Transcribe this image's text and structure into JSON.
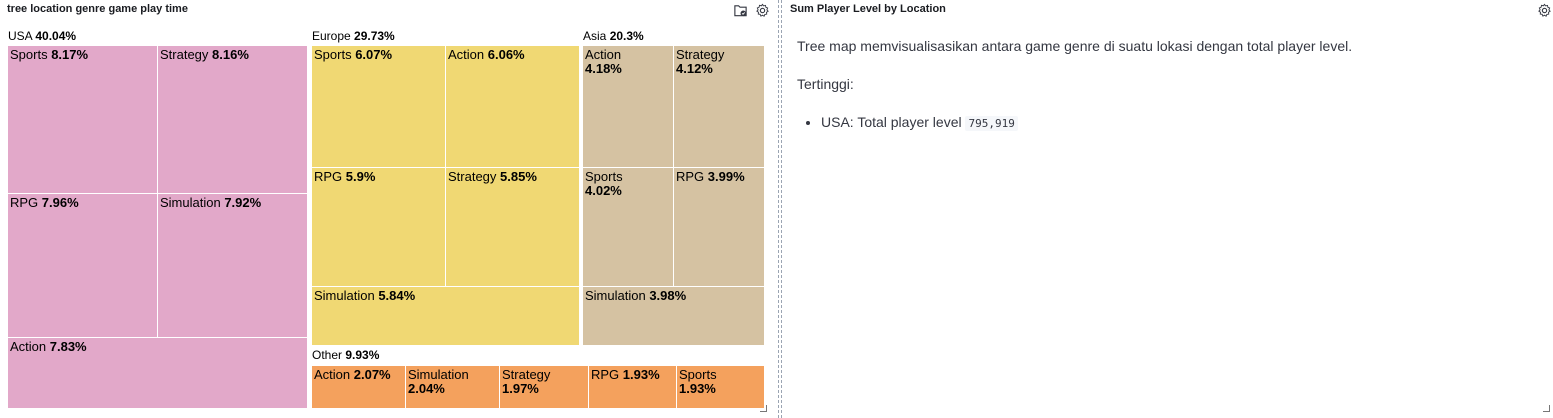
{
  "left_panel": {
    "title": "tree location genre game play time"
  },
  "right_panel": {
    "title": "Sum Player Level by Location",
    "paragraph1": "Tree map memvisualisasikan antara game genre di suatu lokasi dengan total player level.",
    "paragraph2": "Tertinggi:",
    "list_item_text": "USA: Total player level",
    "list_item_value": "795,919"
  },
  "icons": {
    "inspect": "inspect-icon",
    "settings": "gear-icon"
  },
  "chart_data": {
    "type": "treemap",
    "title": "tree location genre game play time",
    "groups": [
      {
        "name": "USA",
        "percent": "40.04%",
        "color": "#e2a8c9",
        "children": [
          {
            "name": "Sports",
            "percent": "8.17%"
          },
          {
            "name": "Strategy",
            "percent": "8.16%"
          },
          {
            "name": "RPG",
            "percent": "7.96%"
          },
          {
            "name": "Simulation",
            "percent": "7.92%"
          },
          {
            "name": "Action",
            "percent": "7.83%"
          }
        ]
      },
      {
        "name": "Europe",
        "percent": "29.73%",
        "color": "#f0d873",
        "children": [
          {
            "name": "Sports",
            "percent": "6.07%"
          },
          {
            "name": "Action",
            "percent": "6.06%"
          },
          {
            "name": "RPG",
            "percent": "5.9%"
          },
          {
            "name": "Strategy",
            "percent": "5.85%"
          },
          {
            "name": "Simulation",
            "percent": "5.84%"
          }
        ]
      },
      {
        "name": "Asia",
        "percent": "20.3%",
        "color": "#d5c2a2",
        "children": [
          {
            "name": "Action",
            "percent": "4.18%"
          },
          {
            "name": "Strategy",
            "percent": "4.12%"
          },
          {
            "name": "Sports",
            "percent": "4.02%"
          },
          {
            "name": "RPG",
            "percent": "3.99%"
          },
          {
            "name": "Simulation",
            "percent": "3.98%"
          }
        ]
      },
      {
        "name": "Other",
        "percent": "9.93%",
        "color": "#f4a15d",
        "children": [
          {
            "name": "Action",
            "percent": "2.07%"
          },
          {
            "name": "Simulation",
            "percent": "2.04%"
          },
          {
            "name": "Strategy",
            "percent": "1.97%"
          },
          {
            "name": "RPG",
            "percent": "1.93%"
          },
          {
            "name": "Sports",
            "percent": "1.93%"
          }
        ]
      }
    ]
  }
}
